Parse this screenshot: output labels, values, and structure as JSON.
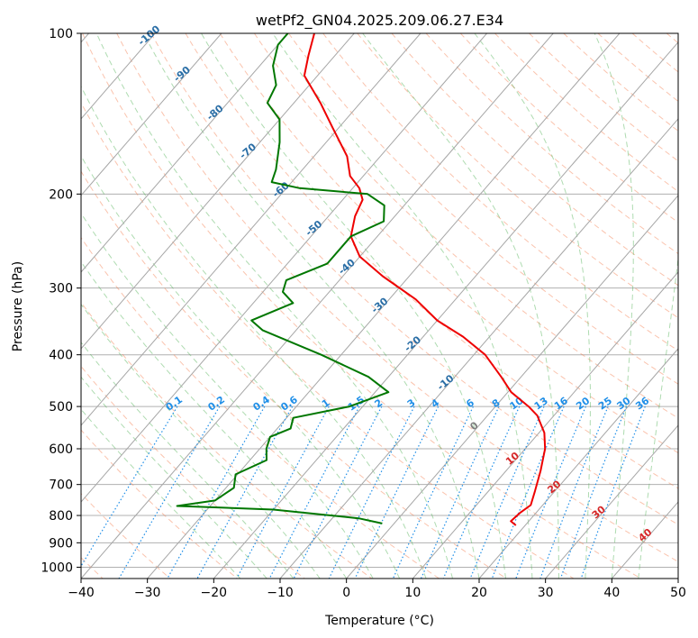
{
  "chart_data": {
    "type": "line",
    "title": "wetPf2_GN04.2025.209.06.27.E34",
    "xlabel": "Temperature (°C)",
    "ylabel": "Pressure (hPa)",
    "xlim": [
      -40,
      50
    ],
    "ylim": [
      1050,
      100
    ],
    "yscale": "log",
    "skew": true,
    "grid": true,
    "x_ticks": [
      -40,
      -30,
      -20,
      -10,
      0,
      10,
      20,
      30,
      40,
      50
    ],
    "y_ticks": [
      1000,
      900,
      800,
      700,
      600,
      500,
      400,
      300,
      200,
      100
    ],
    "series": [
      {
        "id": "temperature",
        "color": "#ee0000",
        "points": [
          [
            18.6,
            835
          ],
          [
            17.3,
            820
          ],
          [
            17.6,
            790
          ],
          [
            18.2,
            765
          ],
          [
            17.0,
            720
          ],
          [
            15.2,
            660
          ],
          [
            13.0,
            600
          ],
          [
            10.8,
            560
          ],
          [
            7.5,
            520
          ],
          [
            5.0,
            500
          ],
          [
            0.5,
            470
          ],
          [
            -3.0,
            440
          ],
          [
            -8.3,
            400
          ],
          [
            -14.0,
            370
          ],
          [
            -20.0,
            345
          ],
          [
            -26.0,
            315
          ],
          [
            -34.0,
            285
          ],
          [
            -40.0,
            262
          ],
          [
            -44.0,
            240
          ],
          [
            -46.0,
            220
          ],
          [
            -47.0,
            205
          ],
          [
            -49.0,
            195
          ],
          [
            -52.0,
            185
          ],
          [
            -55.0,
            170
          ],
          [
            -61.0,
            150
          ],
          [
            -66.0,
            135
          ],
          [
            -72.0,
            120
          ],
          [
            -74.0,
            110
          ],
          [
            -76.0,
            100
          ]
        ]
      },
      {
        "id": "dewpoint",
        "color": "#007700",
        "points": [
          [
            -1.8,
            828
          ],
          [
            -6.0,
            810
          ],
          [
            -20.0,
            780
          ],
          [
            -35.0,
            768
          ],
          [
            -30.0,
            750
          ],
          [
            -28.8,
            710
          ],
          [
            -30.3,
            670
          ],
          [
            -27.5,
            630
          ],
          [
            -29.0,
            600
          ],
          [
            -30.0,
            570
          ],
          [
            -28.0,
            550
          ],
          [
            -29.0,
            525
          ],
          [
            -22.0,
            500
          ],
          [
            -18.0,
            470
          ],
          [
            -23.0,
            440
          ],
          [
            -33.0,
            400
          ],
          [
            -45.0,
            360
          ],
          [
            -48.0,
            345
          ],
          [
            -44.0,
            320
          ],
          [
            -47.0,
            305
          ],
          [
            -48.0,
            290
          ],
          [
            -44.0,
            270
          ],
          [
            -44.0,
            240
          ],
          [
            -41.0,
            225
          ],
          [
            -43.0,
            210
          ],
          [
            -47.0,
            200
          ],
          [
            -58.0,
            195
          ],
          [
            -63.0,
            190
          ],
          [
            -64.0,
            180
          ],
          [
            -67.0,
            160
          ],
          [
            -70.0,
            145
          ],
          [
            -74.0,
            135
          ],
          [
            -75.0,
            125
          ],
          [
            -78.0,
            115
          ],
          [
            -80.0,
            105
          ],
          [
            -80.0,
            100
          ]
        ]
      }
    ],
    "isotherm_labels": [
      "-100",
      "-90",
      "-80",
      "-70",
      "-60",
      "-50",
      "-40",
      "-30",
      "-20",
      "-10",
      "0",
      "10",
      "20",
      "30",
      "40"
    ],
    "mixing_ratio_labels": [
      "0.1",
      "0.2",
      "0.4",
      "0.6",
      "1",
      "1.5",
      "2",
      "3",
      "4",
      "6",
      "8",
      "10",
      "13",
      "16",
      "20",
      "25",
      "30",
      "36"
    ],
    "colors": {
      "isotherm_label_cold": "#2a6ea6",
      "isotherm_label_zero": "#808080",
      "isotherm_label_warm": "#d62728",
      "mixing_ratio": "#1f8fe8",
      "dry_adiabat": "#f47a4a",
      "moist_adiabat": "#4caf50",
      "isotherm_line": "#a6a6a6",
      "grid": "#b0b0b0"
    }
  }
}
